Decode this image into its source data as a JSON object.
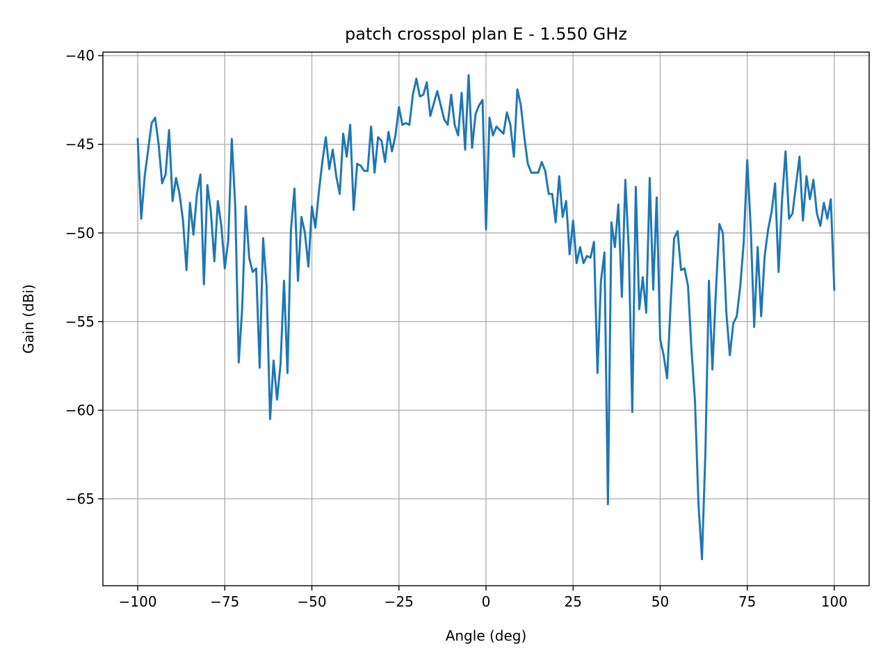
{
  "chart_data": {
    "type": "line",
    "title": "patch crosspol plan E - 1.550 GHz",
    "xlabel": "Angle (deg)",
    "ylabel": "Gain (dBi)",
    "xlim": [
      -110,
      110
    ],
    "ylim": [
      -69.9,
      -39.8
    ],
    "xticks": [
      -100,
      -75,
      -50,
      -25,
      0,
      25,
      50,
      75,
      100
    ],
    "yticks": [
      -40,
      -45,
      -50,
      -55,
      -60,
      -65
    ],
    "xtick_labels": [
      "−100",
      "−75",
      "−50",
      "−25",
      "0",
      "25",
      "50",
      "75",
      "100"
    ],
    "ytick_labels": [
      "−40",
      "−45",
      "−50",
      "−55",
      "−60",
      "−65"
    ],
    "grid": true,
    "line_color": "#1f77b4",
    "series": [
      {
        "x": [
          -100,
          -99,
          -98,
          -97,
          -96,
          -95,
          -94,
          -93,
          -92,
          -91,
          -90,
          -89,
          -88,
          -87,
          -86,
          -85,
          -84,
          -83,
          -82,
          -81,
          -80,
          -79,
          -78,
          -77,
          -76,
          -75,
          -74,
          -73,
          -72,
          -71,
          -70,
          -69,
          -68,
          -67,
          -66,
          -65,
          -64,
          -63,
          -62,
          -61,
          -60,
          -59,
          -58,
          -57,
          -56,
          -55,
          -54,
          -53,
          -52,
          -51,
          -50,
          -49,
          -48,
          -47,
          -46,
          -45,
          -44,
          -43,
          -42,
          -41,
          -40,
          -39,
          -38,
          -37,
          -36,
          -35,
          -34,
          -33,
          -32,
          -31,
          -30,
          -29,
          -28,
          -27,
          -26,
          -25,
          -24,
          -23,
          -22,
          -21,
          -20,
          -19,
          -18,
          -17,
          -16,
          -15,
          -14,
          -13,
          -12,
          -11,
          -10,
          -9,
          -8,
          -7,
          -6,
          -5,
          -4,
          -3,
          -2,
          -1,
          0,
          1,
          2,
          3,
          4,
          5,
          6,
          7,
          8,
          9,
          10,
          11,
          12,
          13,
          14,
          15,
          16,
          17,
          18,
          19,
          20,
          21,
          22,
          23,
          24,
          25,
          26,
          27,
          28,
          29,
          30,
          31,
          32,
          33,
          34,
          35,
          36,
          37,
          38,
          39,
          40,
          41,
          42,
          43,
          44,
          45,
          46,
          47,
          48,
          49,
          50,
          51,
          52,
          53,
          54,
          55,
          56,
          57,
          58,
          59,
          60,
          61,
          62,
          63,
          64,
          65,
          66,
          67,
          68,
          69,
          70,
          71,
          72,
          73,
          74,
          75,
          76,
          77,
          78,
          79,
          80,
          81,
          82,
          83,
          84,
          85,
          86,
          87,
          88,
          89,
          90,
          91,
          92,
          93,
          94,
          95,
          96,
          97,
          98,
          99,
          100
        ],
        "values": [
          -44.7,
          -49.2,
          -46.8,
          -45.3,
          -43.8,
          -43.5,
          -45.0,
          -47.2,
          -46.7,
          -44.2,
          -48.2,
          -46.9,
          -47.8,
          -49.3,
          -52.1,
          -48.3,
          -50.1,
          -47.8,
          -46.7,
          -52.9,
          -47.3,
          -48.8,
          -51.6,
          -48.2,
          -49.6,
          -52.0,
          -50.4,
          -44.7,
          -48.5,
          -57.3,
          -54.2,
          -48.5,
          -51.4,
          -52.2,
          -52.0,
          -57.6,
          -50.3,
          -53.0,
          -60.5,
          -57.2,
          -59.4,
          -57.4,
          -52.7,
          -57.9,
          -49.8,
          -47.5,
          -52.7,
          -49.1,
          -50.0,
          -51.9,
          -48.5,
          -49.7,
          -47.7,
          -46.0,
          -44.6,
          -46.4,
          -45.3,
          -46.8,
          -47.8,
          -44.4,
          -45.7,
          -43.9,
          -48.7,
          -46.1,
          -46.2,
          -46.5,
          -46.5,
          -44.0,
          -46.6,
          -44.6,
          -44.8,
          -46.0,
          -44.3,
          -45.4,
          -44.5,
          -42.9,
          -43.9,
          -43.8,
          -43.9,
          -42.2,
          -41.3,
          -42.3,
          -42.2,
          -41.5,
          -43.4,
          -42.7,
          -42.0,
          -42.8,
          -43.6,
          -43.9,
          -42.2,
          -43.9,
          -44.5,
          -42.1,
          -45.3,
          -41.1,
          -45.2,
          -43.3,
          -42.8,
          -42.5,
          -49.8,
          -43.5,
          -44.5,
          -44.0,
          -44.2,
          -44.4,
          -43.2,
          -43.9,
          -45.7,
          -41.9,
          -42.8,
          -44.6,
          -46.1,
          -46.6,
          -46.6,
          -46.6,
          -46.0,
          -46.5,
          -47.8,
          -47.8,
          -49.4,
          -46.8,
          -49.1,
          -48.2,
          -51.2,
          -49.3,
          -51.7,
          -50.8,
          -51.7,
          -51.3,
          -51.4,
          -50.5,
          -57.9,
          -52.7,
          -51.1,
          -65.3,
          -49.4,
          -50.8,
          -48.4,
          -53.6,
          -47.0,
          -51.0,
          -60.1,
          -47.4,
          -54.3,
          -52.5,
          -54.5,
          -46.9,
          -53.2,
          -48.0,
          -56.0,
          -56.9,
          -58.2,
          -54.0,
          -50.3,
          -49.9,
          -52.1,
          -52.0,
          -53.0,
          -56.6,
          -59.5,
          -65.3,
          -68.4,
          -62.3,
          -52.7,
          -57.7,
          -53.3,
          -49.5,
          -50.0,
          -54.5,
          -56.9,
          -55.1,
          -54.7,
          -53.0,
          -50.5,
          -45.9,
          -49.7,
          -55.3,
          -50.8,
          -54.7,
          -51.3,
          -49.8,
          -48.8,
          -47.2,
          -52.2,
          -48.1,
          -45.4,
          -49.2,
          -48.9,
          -47.3,
          -45.7,
          -49.3,
          -46.8,
          -48.1,
          -47.0,
          -48.9,
          -49.6,
          -48.3,
          -49.2,
          -48.1,
          -53.2
        ]
      }
    ]
  }
}
